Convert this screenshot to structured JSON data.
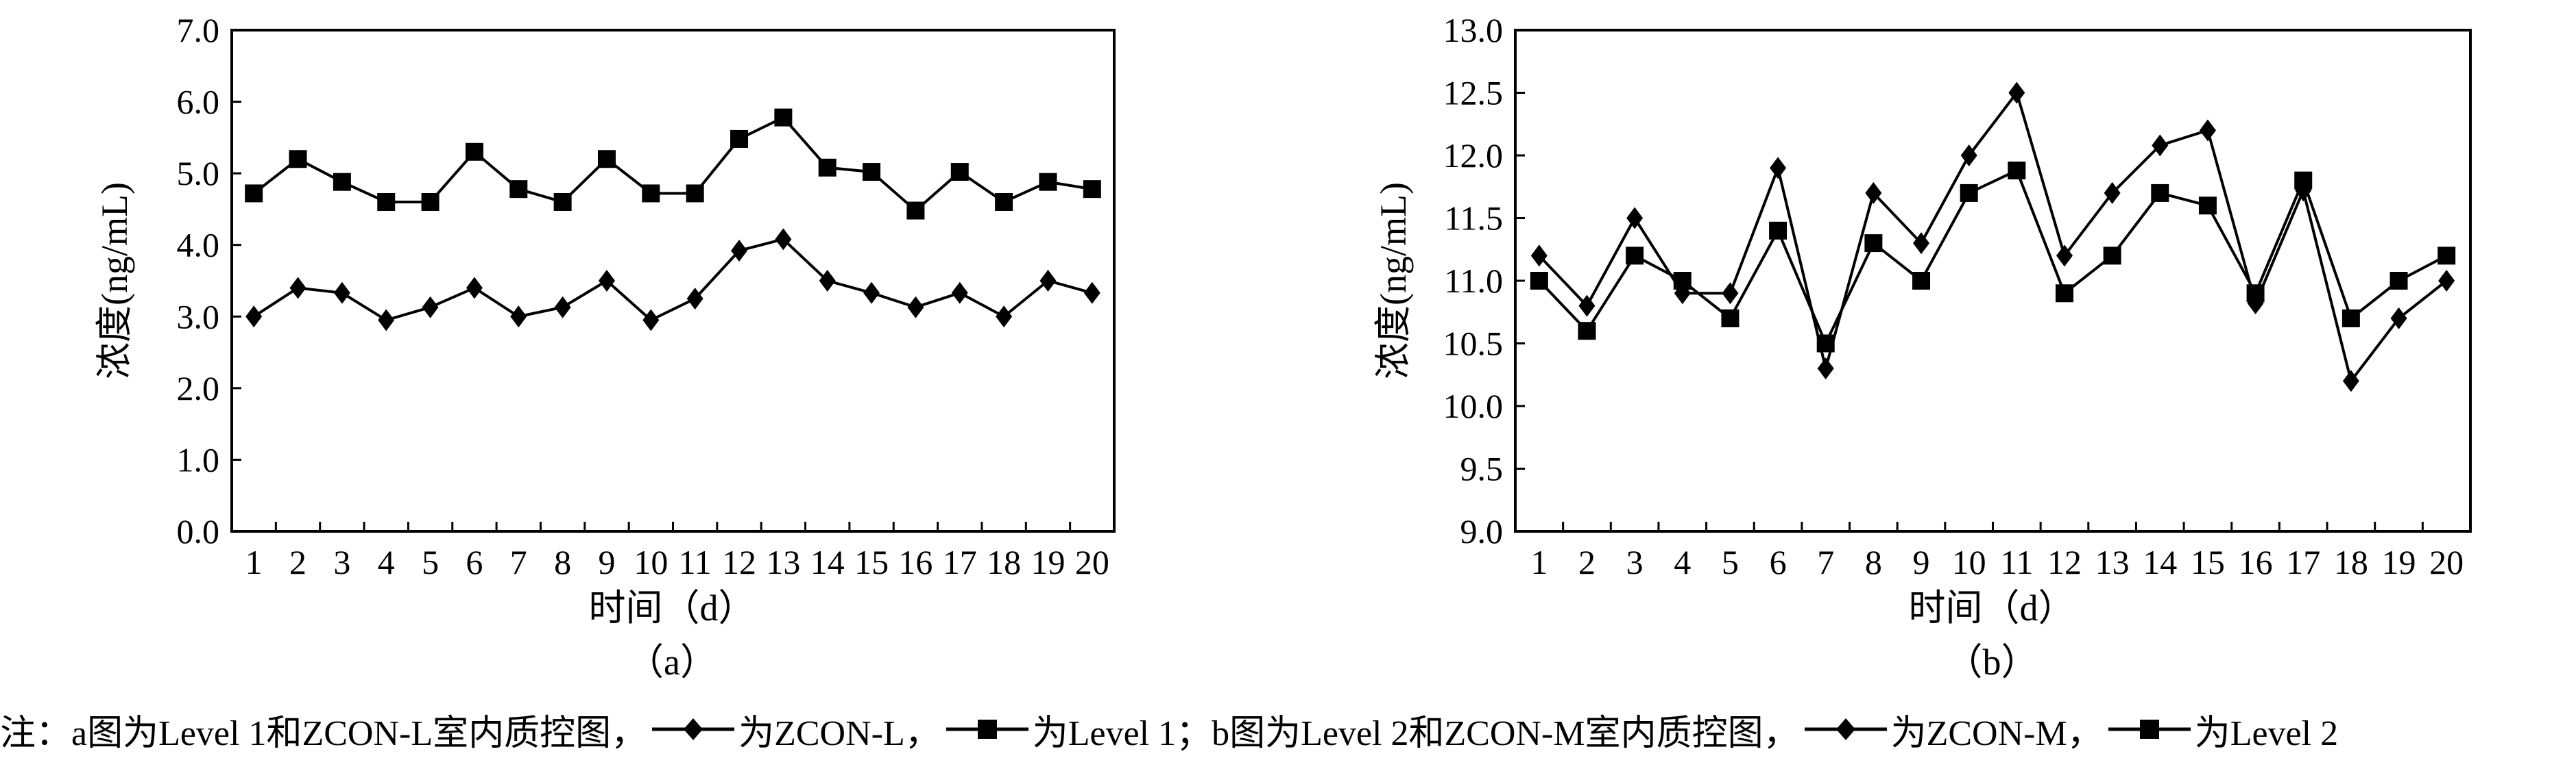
{
  "chart_data": [
    {
      "id": "a",
      "type": "line",
      "caption": "（a）",
      "xlabel": "时间（d）",
      "ylabel": "浓度(ng/mL)",
      "x": [
        1,
        2,
        3,
        4,
        5,
        6,
        7,
        8,
        9,
        10,
        11,
        12,
        13,
        14,
        15,
        16,
        17,
        18,
        19,
        20
      ],
      "ylim": [
        0,
        7
      ],
      "yticks": [
        "0.0",
        "1.0",
        "2.0",
        "3.0",
        "4.0",
        "5.0",
        "6.0",
        "7.0"
      ],
      "series": [
        {
          "name": "ZCON-L",
          "marker": "diamond",
          "values": [
            3.0,
            3.4,
            3.33,
            2.95,
            3.13,
            3.4,
            3.0,
            3.13,
            3.5,
            2.95,
            3.25,
            3.92,
            4.08,
            3.5,
            3.33,
            3.13,
            3.33,
            3.0,
            3.5,
            3.33
          ]
        },
        {
          "name": "Level 1",
          "marker": "square",
          "values": [
            4.72,
            5.2,
            4.88,
            4.6,
            4.6,
            5.3,
            4.78,
            4.6,
            5.2,
            4.72,
            4.72,
            5.48,
            5.78,
            5.08,
            5.02,
            4.48,
            5.02,
            4.6,
            4.88,
            4.78
          ]
        }
      ]
    },
    {
      "id": "b",
      "type": "line",
      "caption": "（b）",
      "xlabel": "时间（d）",
      "ylabel": "浓度(ng/mL)",
      "x": [
        1,
        2,
        3,
        4,
        5,
        6,
        7,
        8,
        9,
        10,
        11,
        12,
        13,
        14,
        15,
        16,
        17,
        18,
        19,
        20
      ],
      "ylim": [
        9,
        13
      ],
      "yticks": [
        "9.0",
        "9.5",
        "10.0",
        "10.5",
        "11.0",
        "11.5",
        "12.0",
        "12.5",
        "13.0"
      ],
      "series": [
        {
          "name": "ZCON-M",
          "marker": "diamond",
          "values": [
            11.2,
            10.8,
            11.5,
            10.9,
            10.9,
            11.9,
            10.3,
            11.7,
            11.3,
            12.0,
            12.5,
            11.2,
            11.7,
            12.08,
            12.2,
            10.82,
            11.72,
            10.2,
            10.7,
            11.0
          ]
        },
        {
          "name": "Level 2",
          "marker": "square",
          "values": [
            11.0,
            10.6,
            11.2,
            11.0,
            10.7,
            11.4,
            10.5,
            11.3,
            11.0,
            11.7,
            11.88,
            10.9,
            11.2,
            11.7,
            11.6,
            10.9,
            11.8,
            10.7,
            11.0,
            11.2
          ]
        }
      ]
    }
  ],
  "note": {
    "part1": "注：a图为Level 1和ZCON-L室内质控图，",
    "part2": "为ZCON-L，",
    "part3": "为Level 1；b图为Level 2和ZCON-M室内质控图，",
    "part4": "为ZCON-M，",
    "part5": "为Level 2"
  }
}
